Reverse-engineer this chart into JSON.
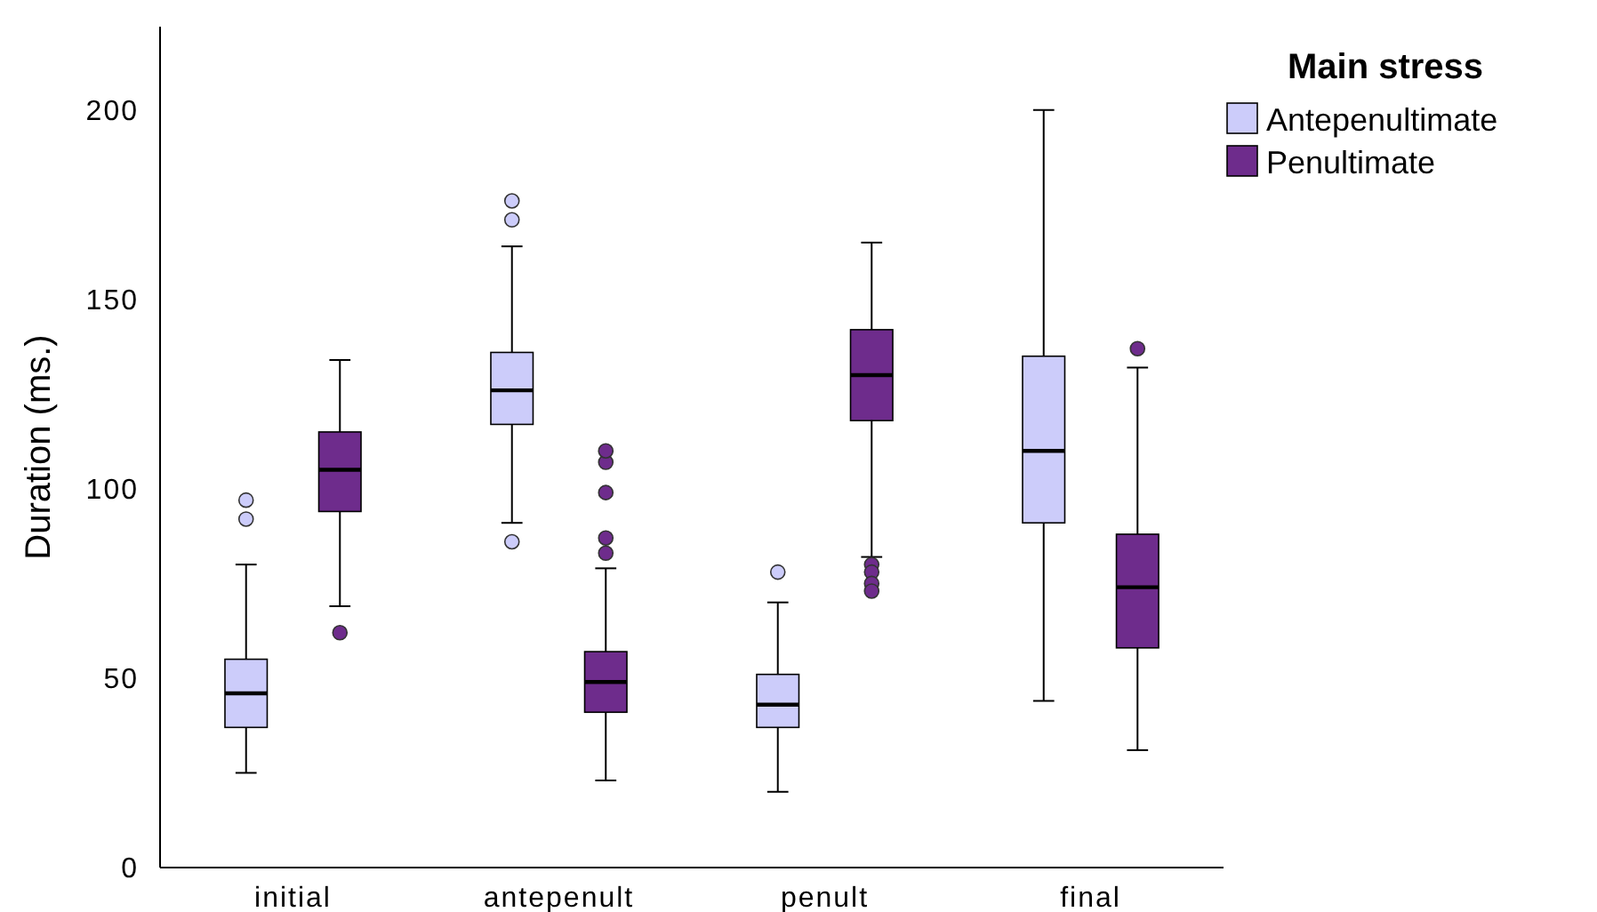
{
  "chart_data": {
    "type": "box",
    "ylabel": "Duration (ms.)",
    "legend_title": "Main stress",
    "legend": "top right",
    "grid": false,
    "categories": [
      "initial",
      "antepenult",
      "penult",
      "final"
    ],
    "ylim": [
      0,
      222
    ],
    "yticks": [
      0,
      50,
      100,
      150,
      200
    ],
    "series": [
      {
        "name": "Antepenultimate",
        "color": "#ccccfa",
        "boxes": [
          {
            "low": 25,
            "q1": 37,
            "median": 46,
            "q3": 55,
            "high": 80,
            "outliers": [
              92,
              97
            ]
          },
          {
            "low": 91,
            "q1": 117,
            "median": 126,
            "q3": 136,
            "high": 164,
            "outliers": [
              86,
              171,
              176
            ]
          },
          {
            "low": 20,
            "q1": 37,
            "median": 43,
            "q3": 51,
            "high": 70,
            "outliers": [
              78
            ]
          },
          {
            "low": 44,
            "q1": 91,
            "median": 110,
            "q3": 135,
            "high": 200
          }
        ]
      },
      {
        "name": "Penultimate",
        "color": "#6e2c8c",
        "boxes": [
          {
            "low": 69,
            "q1": 94,
            "median": 105,
            "q3": 115,
            "high": 134,
            "outliers": [
              62
            ]
          },
          {
            "low": 23,
            "q1": 41,
            "median": 49,
            "q3": 57,
            "high": 79,
            "outliers": [
              83,
              87,
              99,
              107,
              110
            ]
          },
          {
            "low": 82,
            "q1": 118,
            "median": 130,
            "q3": 142,
            "high": 165,
            "outliers": [
              80,
              78,
              75,
              73
            ]
          },
          {
            "low": 31,
            "q1": 58,
            "median": 74,
            "q3": 88,
            "high": 132,
            "outliers": [
              137
            ]
          }
        ]
      }
    ]
  }
}
